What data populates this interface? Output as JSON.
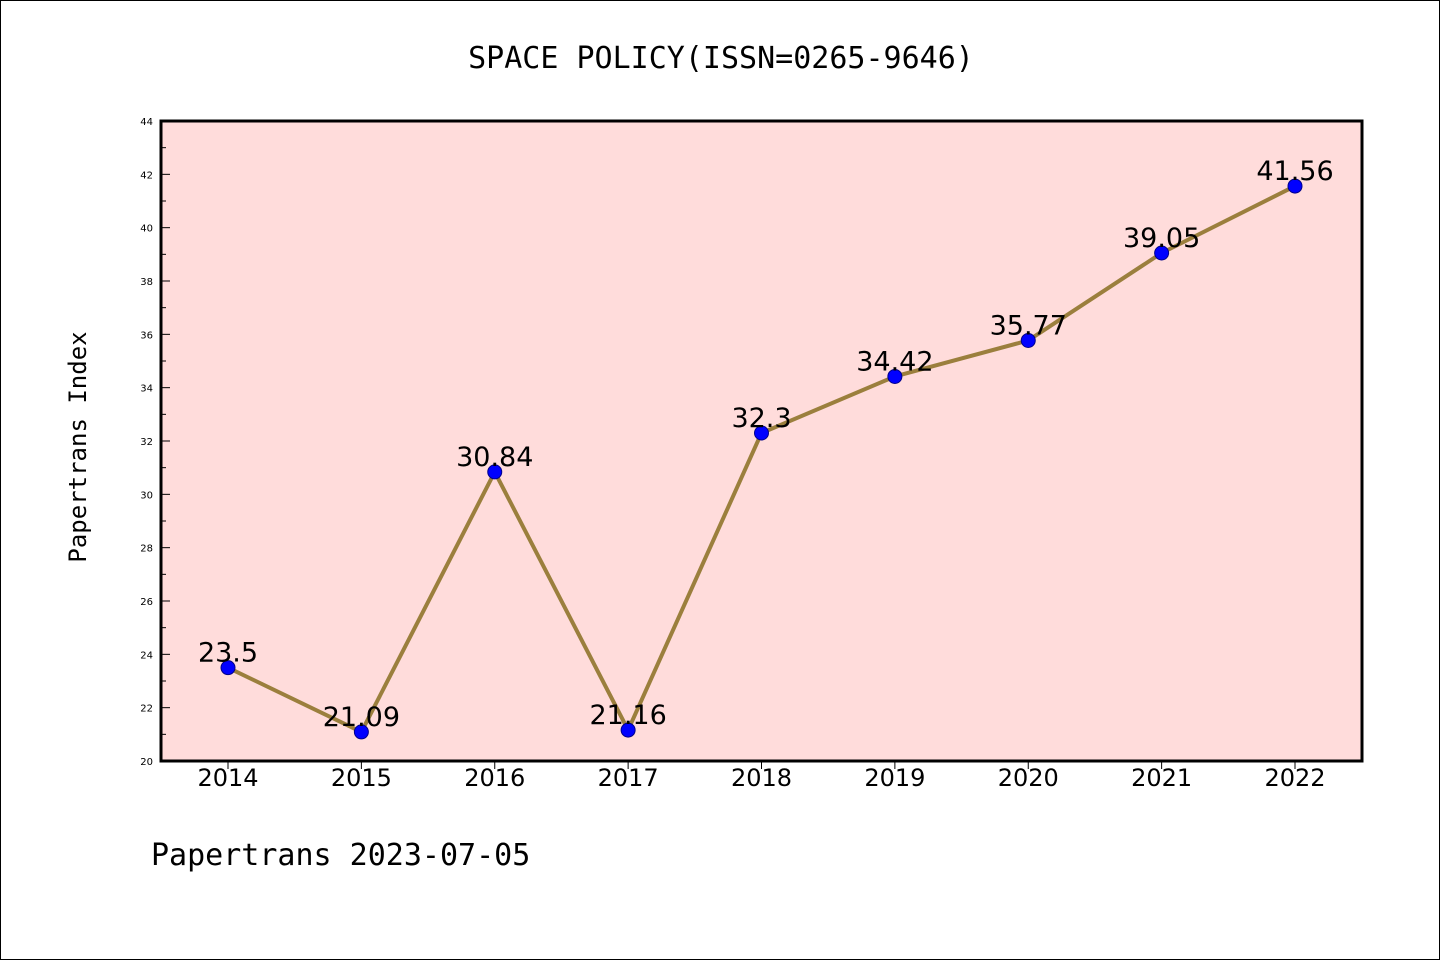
{
  "colors": {
    "plot_background": "#ffdcdb",
    "line": "#9b7f3d",
    "marker_fill": "#0000ff",
    "marker_stroke": "#00008b",
    "axis": "#000000"
  },
  "footer": {
    "text": "Papertrans 2023-07-05"
  },
  "chart_data": {
    "type": "line",
    "title": "SPACE POLICY(ISSN=0265-9646)",
    "xlabel": "",
    "ylabel": "Papertrans Index",
    "x": [
      "2014",
      "2015",
      "2016",
      "2017",
      "2018",
      "2019",
      "2020",
      "2021",
      "2022"
    ],
    "values": [
      23.5,
      21.09,
      30.84,
      21.16,
      32.3,
      34.42,
      35.77,
      39.05,
      41.56
    ],
    "value_labels": [
      "23.5",
      "21.09",
      "30.84",
      "21.16",
      "32.3",
      "34.42",
      "35.77",
      "39.05",
      "41.56"
    ],
    "ylim": [
      20,
      44
    ],
    "yticks": [
      20,
      22,
      24,
      26,
      28,
      30,
      32,
      34,
      36,
      38,
      40,
      42,
      44
    ],
    "ytick_labels": [
      "20",
      "22",
      "24",
      "26",
      "28",
      "30",
      "32",
      "34",
      "36",
      "38",
      "40",
      "42",
      "44"
    ],
    "grid": false,
    "legend": "none"
  }
}
